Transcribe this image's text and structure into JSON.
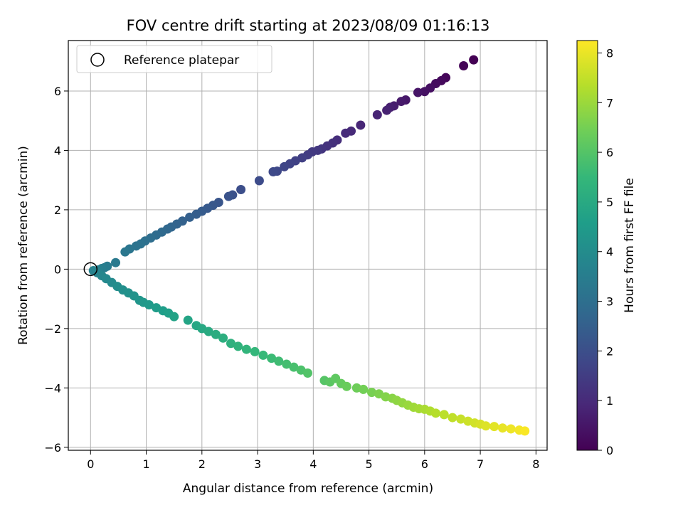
{
  "chart_data": {
    "type": "scatter",
    "title": "FOV centre drift starting at 2023/08/09 01:16:13",
    "xlabel": "Angular distance from reference (arcmin)",
    "ylabel": "Rotation from reference (arcmin)",
    "xlim": [
      -0.4,
      8.2
    ],
    "ylim": [
      -6.1,
      7.7
    ],
    "xticks": [
      0,
      1,
      2,
      3,
      4,
      5,
      6,
      7,
      8
    ],
    "yticks": [
      -6,
      -4,
      -2,
      0,
      2,
      4,
      6
    ],
    "grid": true,
    "legend": {
      "position": "top-left",
      "entries": [
        "Reference platepar"
      ]
    },
    "reference_point": {
      "x": 0,
      "y": 0
    },
    "colorbar": {
      "label": "Hours from first FF file",
      "range": [
        0,
        8.25
      ],
      "ticks": [
        0,
        1,
        2,
        3,
        4,
        5,
        6,
        7,
        8
      ],
      "colormap": [
        "#440154",
        "#482878",
        "#3e4989",
        "#31688e",
        "#26828e",
        "#1f9e89",
        "#35b779",
        "#6ece58",
        "#b5de2b",
        "#fde725"
      ]
    },
    "segments": [
      {
        "x": [
          6.88,
          6.7,
          6.38,
          6.3,
          6.2,
          6.1,
          6.0,
          5.88,
          5.66,
          5.58,
          5.45,
          5.38,
          5.32,
          5.15,
          4.85,
          4.68,
          4.58,
          4.43,
          4.35,
          4.25,
          4.15,
          4.08,
          3.98,
          3.9,
          3.8,
          3.68,
          3.58,
          3.48,
          3.35,
          3.28,
          3.03,
          2.7,
          2.55,
          2.48,
          2.3,
          2.2,
          2.1,
          2.0,
          1.9,
          1.78,
          1.65,
          1.55,
          1.45,
          1.38,
          1.28,
          1.18,
          1.08,
          0.98,
          0.9,
          0.82,
          0.7,
          0.62,
          0.45,
          0.3,
          0.25,
          0.2,
          0.15
        ],
        "y": [
          7.05,
          6.85,
          6.45,
          6.35,
          6.25,
          6.1,
          5.98,
          5.95,
          5.7,
          5.65,
          5.5,
          5.45,
          5.35,
          5.2,
          4.85,
          4.65,
          4.58,
          4.35,
          4.25,
          4.15,
          4.05,
          4.0,
          3.95,
          3.85,
          3.75,
          3.65,
          3.55,
          3.45,
          3.3,
          3.28,
          2.98,
          2.68,
          2.5,
          2.45,
          2.25,
          2.15,
          2.05,
          1.95,
          1.85,
          1.75,
          1.62,
          1.52,
          1.42,
          1.35,
          1.25,
          1.15,
          1.05,
          0.95,
          0.85,
          0.78,
          0.68,
          0.58,
          0.22,
          0.1,
          0.05,
          0.02,
          -0.02
        ],
        "t0": 0.0,
        "t1": 3.6
      },
      {
        "x": [
          0.05,
          0.12,
          0.2,
          0.28,
          0.38,
          0.48,
          0.58,
          0.68,
          0.78,
          0.88,
          0.95,
          1.05,
          1.18,
          1.3,
          1.4,
          1.5,
          1.75,
          1.9,
          2.0,
          2.12,
          2.25,
          2.38,
          2.52,
          2.65,
          2.8,
          2.95,
          3.1,
          3.25,
          3.38,
          3.52,
          3.65,
          3.78,
          3.9,
          4.2,
          4.3,
          4.4,
          4.5,
          4.6,
          4.78,
          4.9,
          5.05,
          5.18,
          5.3,
          5.42,
          5.5,
          5.6,
          5.7,
          5.8,
          5.9,
          6.0,
          6.1,
          6.2,
          6.35,
          6.5,
          6.65,
          6.78,
          6.9,
          7.0,
          7.1,
          7.25,
          7.4,
          7.55,
          7.7,
          7.8
        ],
        "y": [
          -0.05,
          -0.12,
          -0.22,
          -0.32,
          -0.45,
          -0.58,
          -0.7,
          -0.8,
          -0.9,
          -1.05,
          -1.12,
          -1.2,
          -1.3,
          -1.4,
          -1.48,
          -1.6,
          -1.72,
          -1.9,
          -2.0,
          -2.1,
          -2.2,
          -2.32,
          -2.5,
          -2.6,
          -2.7,
          -2.78,
          -2.9,
          -3.0,
          -3.1,
          -3.2,
          -3.3,
          -3.4,
          -3.5,
          -3.75,
          -3.8,
          -3.68,
          -3.85,
          -3.95,
          -4.0,
          -4.05,
          -4.15,
          -4.2,
          -4.3,
          -4.35,
          -4.42,
          -4.5,
          -4.58,
          -4.65,
          -4.7,
          -4.72,
          -4.78,
          -4.85,
          -4.9,
          -5.0,
          -5.05,
          -5.12,
          -5.18,
          -5.22,
          -5.28,
          -5.3,
          -5.35,
          -5.38,
          -5.42,
          -5.45
        ],
        "t0": 3.65,
        "t1": 8.2
      }
    ]
  }
}
